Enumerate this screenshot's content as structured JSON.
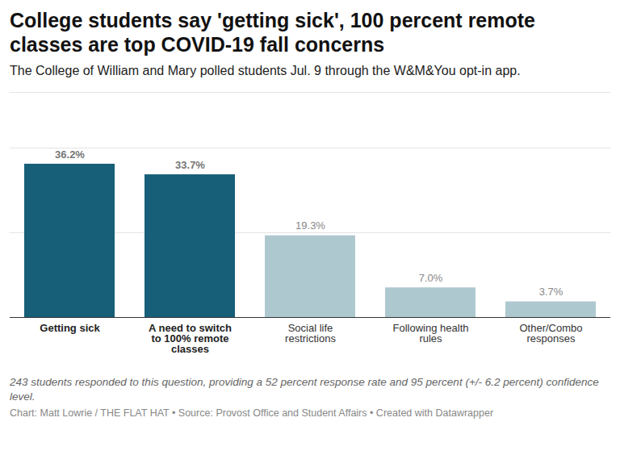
{
  "chart_data": {
    "type": "bar",
    "title": "College students say 'getting sick', 100 percent remote classes are top COVID-19 fall concerns",
    "subtitle": "The College of William and Mary polled students Jul. 9 through the W&M&You opt-in app.",
    "categories": [
      "Getting sick",
      "A need to switch to 100% remote classes",
      "Social life restrictions",
      "Following health rules",
      "Other/Combo responses"
    ],
    "values": [
      36.2,
      33.7,
      19.3,
      7.0,
      3.7
    ],
    "value_labels": [
      "36.2%",
      "33.7%",
      "19.3%",
      "7.0%",
      "3.7%"
    ],
    "colors": [
      "#175e78",
      "#175e78",
      "#aec8d0",
      "#aec8d0",
      "#aec8d0"
    ],
    "ylim": [
      0,
      40
    ],
    "yticks": [
      0,
      20,
      40
    ],
    "grid": true,
    "data_labels": true,
    "tick_labels": "x",
    "caption": "243 students responded to this question, providing a 52 percent response rate and 95 percent (+/- 6.2 percent) confidence level.",
    "credit": "Chart: Matt Lowrie / THE FLAT HAT • Source: Provost Office and Student Affairs • Created with Datawrapper"
  }
}
